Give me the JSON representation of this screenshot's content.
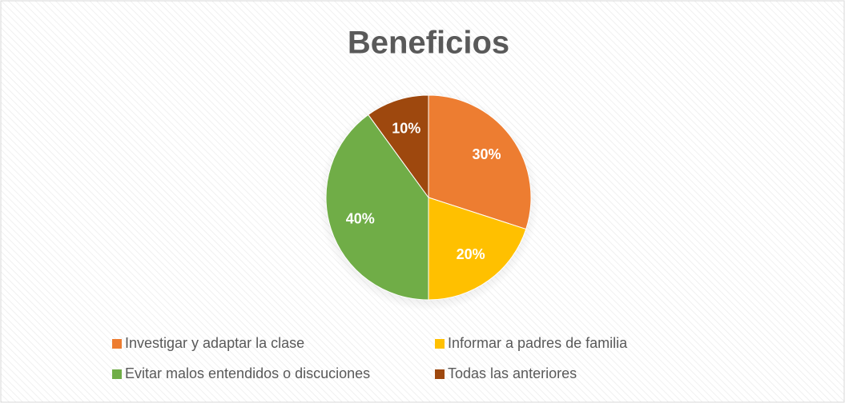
{
  "chart_data": {
    "type": "pie",
    "title": "Beneficios",
    "categories": [
      "Investigar y adaptar la clase",
      "Informar a padres de familia",
      "Evitar malos entendidos o discuciones",
      "Todas las anteriores"
    ],
    "values": [
      30,
      20,
      40,
      10
    ],
    "value_labels": [
      "30%",
      "20%",
      "40%",
      "10%"
    ],
    "colors": [
      "#ED7D31",
      "#FFC000",
      "#70AD47",
      "#9E480E"
    ],
    "legend": "bottom"
  }
}
